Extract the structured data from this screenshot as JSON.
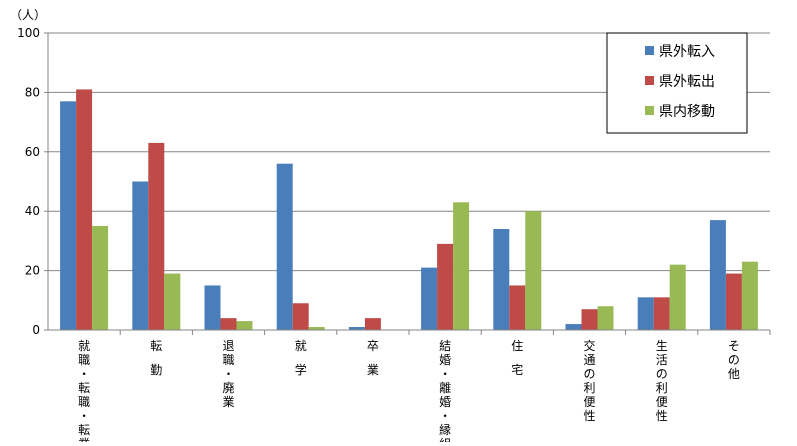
{
  "chart_data": {
    "type": "bar",
    "unit_label": "（人）",
    "ylim": [
      0,
      100
    ],
    "yticks": [
      0,
      20,
      40,
      60,
      80,
      100
    ],
    "grid": true,
    "legend_position": "top-right",
    "categories": [
      "就職・転職・転業",
      "転勤",
      "退職・廃業",
      "就学",
      "卒業",
      "結婚・離婚・縁組",
      "住宅",
      "交通の利便性",
      "生活の利便性",
      "その他"
    ],
    "series": [
      {
        "name": "県外転入",
        "color": "#4a7ebb",
        "values": [
          77,
          50,
          15,
          56,
          1,
          21,
          34,
          2,
          11,
          37
        ]
      },
      {
        "name": "県外転出",
        "color": "#be4b48",
        "values": [
          81,
          63,
          4,
          9,
          4,
          29,
          15,
          7,
          11,
          19
        ]
      },
      {
        "name": "県内移動",
        "color": "#98b954",
        "values": [
          35,
          19,
          3,
          1,
          0,
          43,
          40,
          8,
          22,
          23
        ]
      }
    ]
  }
}
